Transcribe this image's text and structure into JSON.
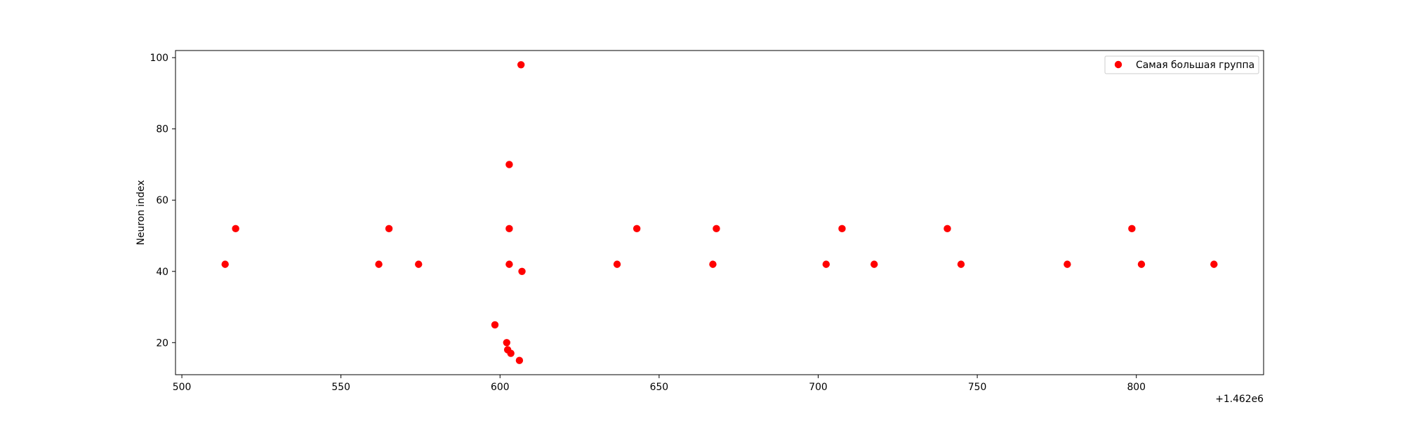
{
  "chart_data": {
    "type": "scatter",
    "title": "",
    "xlabel": "",
    "ylabel": "Neuron index",
    "x_offset_label": "+1.462e6",
    "xlim": [
      498,
      840
    ],
    "ylim": [
      11,
      102
    ],
    "x_ticks": [
      500,
      550,
      600,
      650,
      700,
      750,
      800
    ],
    "y_ticks": [
      20,
      40,
      60,
      80,
      100
    ],
    "grid": false,
    "legend_position": "top-right",
    "series": [
      {
        "name": "Самая большая группа",
        "color": "#ff0000",
        "points": [
          {
            "x": 513.6,
            "y": 42
          },
          {
            "x": 516.9,
            "y": 52
          },
          {
            "x": 561.9,
            "y": 42
          },
          {
            "x": 565.1,
            "y": 52
          },
          {
            "x": 574.4,
            "y": 42
          },
          {
            "x": 598.4,
            "y": 25
          },
          {
            "x": 602.1,
            "y": 20
          },
          {
            "x": 602.4,
            "y": 18
          },
          {
            "x": 603.4,
            "y": 17
          },
          {
            "x": 606.1,
            "y": 15
          },
          {
            "x": 602.9,
            "y": 70
          },
          {
            "x": 602.9,
            "y": 52
          },
          {
            "x": 602.9,
            "y": 42
          },
          {
            "x": 606.6,
            "y": 98
          },
          {
            "x": 606.9,
            "y": 40
          },
          {
            "x": 636.8,
            "y": 42
          },
          {
            "x": 643.0,
            "y": 52
          },
          {
            "x": 666.9,
            "y": 42
          },
          {
            "x": 668.0,
            "y": 52
          },
          {
            "x": 702.5,
            "y": 42
          },
          {
            "x": 707.5,
            "y": 52
          },
          {
            "x": 717.6,
            "y": 42
          },
          {
            "x": 740.6,
            "y": 52
          },
          {
            "x": 744.9,
            "y": 42
          },
          {
            "x": 778.3,
            "y": 42
          },
          {
            "x": 798.6,
            "y": 52
          },
          {
            "x": 801.6,
            "y": 42
          },
          {
            "x": 824.4,
            "y": 42
          }
        ]
      }
    ]
  }
}
